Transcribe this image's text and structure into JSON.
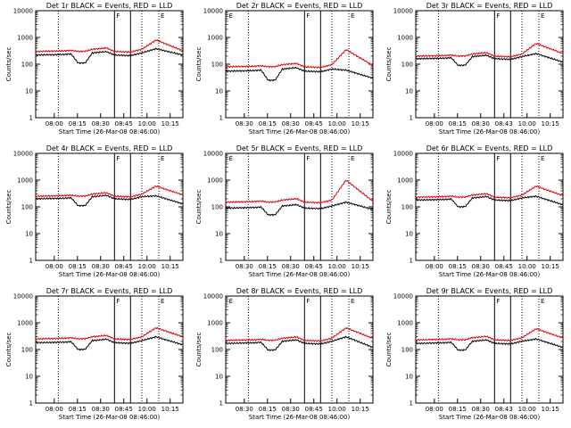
{
  "chart_data": [
    {
      "type": "line",
      "title": "Det 1r BLACK = Events, RED = LLD",
      "xlabel": "Start Time (26-Mar-08 08:46:00)",
      "ylabel": "Counts/sec",
      "x_ticks": [
        "08:00",
        "08:15",
        "08:30",
        "08:45",
        "10:00",
        "10:15"
      ],
      "y_ticks": [
        "1",
        "10",
        "100",
        "1000",
        "10000"
      ],
      "ylim": [
        1,
        10000
      ],
      "y_scale": "log",
      "x_range_seconds": [
        -3600,
        2640
      ],
      "vertical_markers": {
        "dotted": [
          -2640,
          900,
          1620
        ],
        "solid": [
          -260,
          420
        ]
      },
      "marker_labels": [
        {
          "text": "F",
          "at": -260
        },
        {
          "text": "E",
          "at": 1620
        }
      ],
      "series": [
        {
          "color": "#000000",
          "base": 220,
          "dip": 110,
          "peak": 380,
          "end": 220
        },
        {
          "color": "#e00000",
          "base": 300,
          "dip": 300,
          "peak": 800,
          "end": 320
        }
      ]
    },
    {
      "type": "line",
      "title": "Det 2r BLACK = Events, RED = LLD",
      "xlabel": "Start Time (26-Mar-08 08:46:00)",
      "ylabel": "Counts/sec",
      "x_ticks": [
        "08:30",
        "08:15",
        "08:30",
        "08:45",
        "10:00",
        "10:15"
      ],
      "y_ticks": [
        "1",
        "10",
        "100",
        "1000",
        "10000"
      ],
      "ylim": [
        1,
        10000
      ],
      "y_scale": "log",
      "x_range_seconds": [
        -3600,
        2640
      ],
      "vertical_markers": {
        "dotted": [
          -2640,
          900,
          1620
        ],
        "solid": [
          -260,
          420
        ]
      },
      "marker_labels": [
        {
          "text": "E",
          "at": -3540
        },
        {
          "text": "F",
          "at": -260
        },
        {
          "text": "E",
          "at": 1620
        }
      ],
      "series": [
        {
          "color": "#000000",
          "base": 55,
          "dip": 25,
          "peak": 60,
          "end": 30
        },
        {
          "color": "#e00000",
          "base": 80,
          "dip": 80,
          "peak": 350,
          "end": 90
        }
      ]
    },
    {
      "type": "line",
      "title": "Det 3r BLACK = Events, RED = LLD",
      "xlabel": "Start Time (26-Mar-08 08:46:00)",
      "ylabel": "Counts/sec",
      "x_ticks": [
        "08:00",
        "08:15",
        "08:30",
        "08:43",
        "10:00",
        "10:15"
      ],
      "y_ticks": [
        "1",
        "10",
        "100",
        "1000",
        "10000"
      ],
      "ylim": [
        1,
        10000
      ],
      "y_scale": "log",
      "x_range_seconds": [
        -3600,
        2640
      ],
      "vertical_markers": {
        "dotted": [
          -2640,
          900,
          1620
        ],
        "solid": [
          -260,
          420
        ]
      },
      "marker_labels": [
        {
          "text": "F",
          "at": -260
        },
        {
          "text": "E",
          "at": 1620
        }
      ],
      "series": [
        {
          "color": "#000000",
          "base": 160,
          "dip": 90,
          "peak": 250,
          "end": 120
        },
        {
          "color": "#e00000",
          "base": 200,
          "dip": 200,
          "peak": 600,
          "end": 250
        }
      ]
    },
    {
      "type": "line",
      "title": "Det 4r BLACK = Events, RED = LLD",
      "xlabel": "Start Time (26-Mar-08 08:46:00)",
      "ylabel": "Counts/sec",
      "x_ticks": [
        "08:00",
        "08:15",
        "08:30",
        "08:45",
        "10:00",
        "10:15"
      ],
      "y_ticks": [
        "1",
        "10",
        "100",
        "1000",
        "10000"
      ],
      "ylim": [
        1,
        10000
      ],
      "y_scale": "log",
      "x_range_seconds": [
        -3600,
        2640
      ],
      "vertical_markers": {
        "dotted": [
          -2640,
          900,
          1620
        ],
        "solid": [
          -260,
          420
        ]
      },
      "marker_labels": [
        {
          "text": "F",
          "at": -260
        },
        {
          "text": "E",
          "at": 1620
        }
      ],
      "series": [
        {
          "color": "#000000",
          "base": 200,
          "dip": 110,
          "peak": 260,
          "end": 130
        },
        {
          "color": "#e00000",
          "base": 250,
          "dip": 250,
          "peak": 600,
          "end": 280
        }
      ]
    },
    {
      "type": "line",
      "title": "Det 5r BLACK = Events, RED = LLD",
      "xlabel": "Start Time (26-Mar-08 08:46:00)",
      "ylabel": "Counts/sec",
      "x_ticks": [
        "08:30",
        "08:15",
        "08:30",
        "08:45",
        "10:00",
        "10:15"
      ],
      "y_ticks": [
        "1",
        "10",
        "100",
        "1000",
        "10000"
      ],
      "ylim": [
        1,
        10000
      ],
      "y_scale": "log",
      "x_range_seconds": [
        -3600,
        2640
      ],
      "vertical_markers": {
        "dotted": [
          -2640,
          900,
          1620
        ],
        "solid": [
          -260,
          420
        ]
      },
      "marker_labels": [
        {
          "text": "E",
          "at": -3540
        },
        {
          "text": "F",
          "at": -260
        },
        {
          "text": "E",
          "at": 1620
        }
      ],
      "series": [
        {
          "color": "#000000",
          "base": 90,
          "dip": 50,
          "peak": 150,
          "end": 80
        },
        {
          "color": "#e00000",
          "base": 150,
          "dip": 150,
          "peak": 1000,
          "end": 160
        }
      ]
    },
    {
      "type": "line",
      "title": "Det 6r BLACK = Events, RED = LLD",
      "xlabel": "Start Time (26-Mar-08 08:46:00)",
      "ylabel": "Counts/sec",
      "x_ticks": [
        "08:00",
        "08:15",
        "08:30",
        "08:45",
        "10:00",
        "10:15"
      ],
      "y_ticks": [
        "1",
        "10",
        "100",
        "1000",
        "10000"
      ],
      "ylim": [
        1,
        10000
      ],
      "y_scale": "log",
      "x_range_seconds": [
        -3600,
        2640
      ],
      "vertical_markers": {
        "dotted": [
          -2640,
          900,
          1620
        ],
        "solid": [
          -260,
          420
        ]
      },
      "marker_labels": [
        {
          "text": "F",
          "at": -260
        },
        {
          "text": "E",
          "at": 1620
        }
      ],
      "series": [
        {
          "color": "#000000",
          "base": 180,
          "dip": 100,
          "peak": 250,
          "end": 120
        },
        {
          "color": "#e00000",
          "base": 230,
          "dip": 230,
          "peak": 600,
          "end": 260
        }
      ]
    },
    {
      "type": "line",
      "title": "Det 7r BLACK = Events, RED = LLD",
      "xlabel": "Start Time (26-Mar-08 08:46:00)",
      "ylabel": "Counts/sec",
      "x_ticks": [
        "08:00",
        "08:15",
        "08:30",
        "08:45",
        "10:00",
        "10:15"
      ],
      "y_ticks": [
        "1",
        "10",
        "100",
        "1000",
        "10000"
      ],
      "ylim": [
        1,
        10000
      ],
      "y_scale": "log",
      "x_range_seconds": [
        -3600,
        2640
      ],
      "vertical_markers": {
        "dotted": [
          -2640,
          900,
          1620
        ],
        "solid": [
          -260,
          420
        ]
      },
      "marker_labels": [
        {
          "text": "F",
          "at": -260
        },
        {
          "text": "E",
          "at": 1620
        }
      ],
      "series": [
        {
          "color": "#000000",
          "base": 180,
          "dip": 100,
          "peak": 300,
          "end": 150
        },
        {
          "color": "#e00000",
          "base": 250,
          "dip": 250,
          "peak": 650,
          "end": 300
        }
      ]
    },
    {
      "type": "line",
      "title": "Det 8r BLACK = Events, RED = LLD",
      "xlabel": "Start Time (26-Mar-08 08:46:00)",
      "ylabel": "Counts/sec",
      "x_ticks": [
        "08:30",
        "08:15",
        "08:30",
        "08:45",
        "10:00",
        "10:15"
      ],
      "y_ticks": [
        "1",
        "10",
        "100",
        "1000",
        "10000"
      ],
      "ylim": [
        1,
        10000
      ],
      "y_scale": "log",
      "x_range_seconds": [
        -3600,
        2640
      ],
      "vertical_markers": {
        "dotted": [
          -2640,
          900,
          1620
        ],
        "solid": [
          -260,
          420
        ]
      },
      "marker_labels": [
        {
          "text": "E",
          "at": -3540
        },
        {
          "text": "F",
          "at": -260
        },
        {
          "text": "E",
          "at": 1620
        }
      ],
      "series": [
        {
          "color": "#000000",
          "base": 170,
          "dip": 95,
          "peak": 300,
          "end": 120
        },
        {
          "color": "#e00000",
          "base": 220,
          "dip": 220,
          "peak": 650,
          "end": 260
        }
      ]
    },
    {
      "type": "line",
      "title": "Det 9r BLACK = Events, RED = LLD",
      "xlabel": "Start Time (26-Mar-08 08:46:00)",
      "ylabel": "Counts/sec",
      "x_ticks": [
        "08:00",
        "08:15",
        "08:30",
        "08:43",
        "10:00",
        "10:15"
      ],
      "y_ticks": [
        "1",
        "10",
        "100",
        "1000",
        "10000"
      ],
      "ylim": [
        1,
        10000
      ],
      "y_scale": "log",
      "x_range_seconds": [
        -3600,
        2640
      ],
      "vertical_markers": {
        "dotted": [
          -2640,
          900,
          1620
        ],
        "solid": [
          -260,
          420
        ]
      },
      "marker_labels": [
        {
          "text": "F",
          "at": -260
        },
        {
          "text": "E",
          "at": 1620
        }
      ],
      "series": [
        {
          "color": "#000000",
          "base": 170,
          "dip": 95,
          "peak": 250,
          "end": 120
        },
        {
          "color": "#e00000",
          "base": 230,
          "dip": 230,
          "peak": 600,
          "end": 270
        }
      ]
    }
  ]
}
